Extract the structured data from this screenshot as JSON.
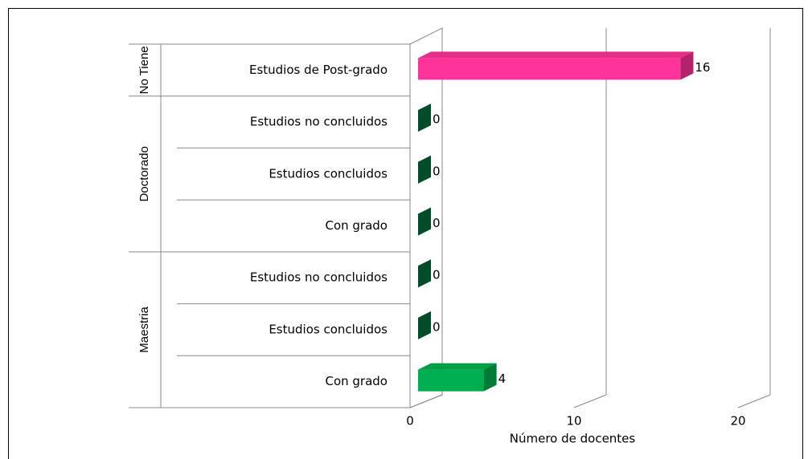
{
  "chart_data": {
    "type": "bar",
    "groups": [
      {
        "name": "No Tiene",
        "categories": [
          "Estudios de Post-grado"
        ],
        "values": [
          16
        ],
        "colors": [
          "#ff3399"
        ]
      },
      {
        "name": "Doctorado",
        "categories": [
          "Estudios no concluidos",
          "Estudios concluidos",
          "Con grado"
        ],
        "values": [
          0,
          0,
          0
        ],
        "colors": [
          "#00703c",
          "#00703c",
          "#00703c"
        ]
      },
      {
        "name": "Maestria",
        "categories": [
          "Estudios no concluidos",
          "Estudios concluidos",
          "Con grado"
        ],
        "values": [
          0,
          0,
          4
        ],
        "colors": [
          "#00703c",
          "#00703c",
          "#00b050"
        ]
      }
    ],
    "xlim": [
      0,
      20
    ],
    "xticks": [
      0,
      10,
      20
    ],
    "xlabel": "Número de docentes",
    "grid": true
  }
}
